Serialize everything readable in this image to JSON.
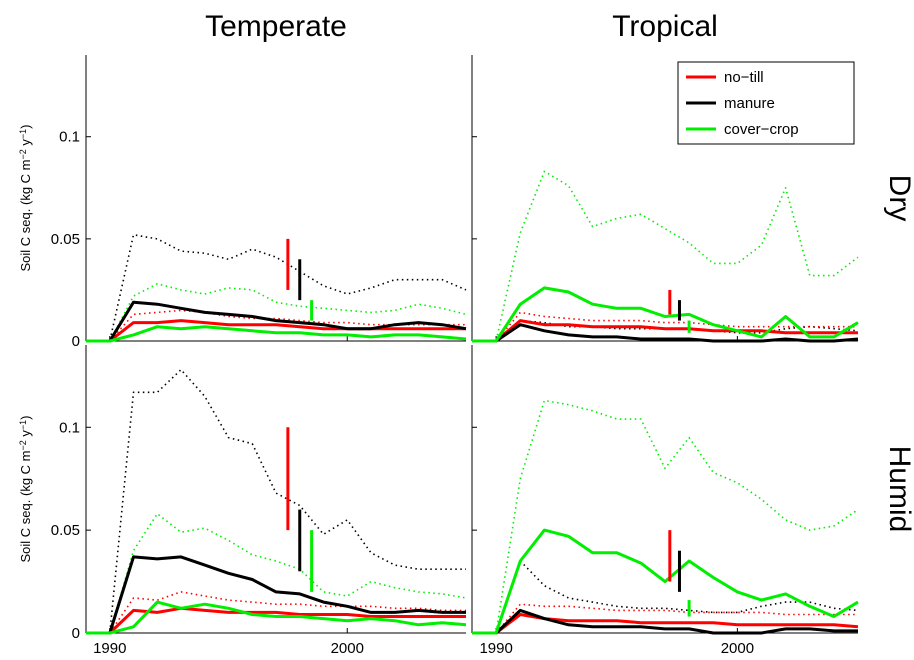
{
  "chart_data": [
    {
      "type": "line",
      "title": "Temperate",
      "ylabel": [
        "Soil C seq. (kg C m",
        "−2",
        " y",
        "−1",
        ")"
      ],
      "x": [
        1989,
        1990,
        1991,
        1992,
        1993,
        1994,
        1995,
        1996,
        1997,
        1998,
        1999,
        2000,
        2001,
        2002,
        2003,
        2004,
        2005
      ],
      "xlim": [
        1989,
        2005
      ],
      "xticks": [
        1990,
        2000
      ],
      "show_xticklabels": false,
      "ylim": [
        0,
        0.14
      ],
      "yticks": [
        0,
        0.05,
        0.1
      ],
      "show_yticklabels": true,
      "series": [
        {
          "color": "#000000",
          "style": "dotted",
          "values": [
            0,
            0,
            0.052,
            0.05,
            0.044,
            0.043,
            0.04,
            0.045,
            0.041,
            0.034,
            0.027,
            0.023,
            0.026,
            0.03,
            0.03,
            0.03,
            0.025
          ]
        },
        {
          "color": "#00ee00",
          "style": "dotted",
          "values": [
            0,
            0,
            0.022,
            0.028,
            0.025,
            0.023,
            0.026,
            0.025,
            0.019,
            0.017,
            0.016,
            0.015,
            0.014,
            0.015,
            0.018,
            0.016,
            0.013
          ]
        },
        {
          "color": "#ff0000",
          "style": "dotted",
          "values": [
            0,
            0,
            0.013,
            0.014,
            0.015,
            0.014,
            0.012,
            0.011,
            0.011,
            0.01,
            0.009,
            0.009,
            0.008,
            0.008,
            0.008,
            0.008,
            0.008
          ]
        },
        {
          "color": "#ff0000",
          "style": "solid",
          "values": [
            0,
            0,
            0.009,
            0.009,
            0.01,
            0.009,
            0.008,
            0.008,
            0.008,
            0.007,
            0.006,
            0.006,
            0.006,
            0.006,
            0.006,
            0.006,
            0.006
          ]
        },
        {
          "color": "#000000",
          "style": "solid",
          "values": [
            0,
            0,
            0.019,
            0.018,
            0.016,
            0.014,
            0.013,
            0.012,
            0.01,
            0.009,
            0.008,
            0.006,
            0.006,
            0.008,
            0.009,
            0.008,
            0.006
          ]
        },
        {
          "color": "#00ee00",
          "style": "solid",
          "values": [
            0,
            0,
            0.003,
            0.007,
            0.006,
            0.007,
            0.006,
            0.005,
            0.004,
            0.004,
            0.003,
            0.003,
            0.002,
            0.003,
            0.003,
            0.002,
            0.001
          ]
        }
      ],
      "bars": [
        {
          "color": "#ff0000",
          "x": 1997.5,
          "low": 0.025,
          "high": 0.05
        },
        {
          "color": "#000000",
          "x": 1998,
          "low": 0.02,
          "high": 0.04
        },
        {
          "color": "#00ee00",
          "x": 1998.5,
          "low": 0.01,
          "high": 0.02
        }
      ]
    },
    {
      "type": "line",
      "title": "Tropical",
      "row_label": "Dry",
      "x": [
        1989,
        1990,
        1991,
        1992,
        1993,
        1994,
        1995,
        1996,
        1997,
        1998,
        1999,
        2000,
        2001,
        2002,
        2003,
        2004,
        2005
      ],
      "xlim": [
        1989,
        2005
      ],
      "xticks": [
        1990,
        2000
      ],
      "show_xticklabels": false,
      "ylim": [
        0,
        0.14
      ],
      "yticks": [
        0,
        0.05,
        0.1
      ],
      "show_yticklabels": false,
      "legend": "upper right",
      "series": [
        {
          "color": "#00ee00",
          "style": "dotted",
          "values": [
            0,
            0,
            0.053,
            0.083,
            0.076,
            0.056,
            0.06,
            0.062,
            0.055,
            0.048,
            0.038,
            0.038,
            0.047,
            0.075,
            0.032,
            0.032,
            0.041
          ]
        },
        {
          "color": "#000000",
          "style": "dotted",
          "values": [
            0,
            0,
            0.01,
            0.009,
            0.007,
            0.007,
            0.006,
            0.006,
            0.006,
            0.006,
            0.005,
            0.004,
            0.004,
            0.006,
            0.007,
            0.006,
            0.005
          ]
        },
        {
          "color": "#ff0000",
          "style": "dotted",
          "values": [
            0,
            0,
            0.014,
            0.012,
            0.011,
            0.01,
            0.01,
            0.01,
            0.009,
            0.009,
            0.008,
            0.007,
            0.007,
            0.007,
            0.007,
            0.007,
            0.007
          ]
        },
        {
          "name": "no−till",
          "color": "#ff0000",
          "style": "solid",
          "values": [
            0,
            0,
            0.01,
            0.008,
            0.008,
            0.007,
            0.007,
            0.007,
            0.006,
            0.006,
            0.005,
            0.005,
            0.005,
            0.004,
            0.004,
            0.004,
            0.004
          ]
        },
        {
          "name": "manure",
          "color": "#000000",
          "style": "solid",
          "values": [
            0,
            0,
            0.008,
            0.005,
            0.003,
            0.002,
            0.002,
            0.001,
            0.001,
            0.001,
            0,
            0,
            0,
            0.001,
            0,
            0,
            0.001
          ]
        },
        {
          "name": "cover−crop",
          "color": "#00ee00",
          "style": "solid",
          "values": [
            0,
            0,
            0.018,
            0.026,
            0.024,
            0.018,
            0.016,
            0.016,
            0.012,
            0.013,
            0.008,
            0.005,
            0.002,
            0.012,
            0.002,
            0.002,
            0.009
          ]
        }
      ],
      "bars": [
        {
          "color": "#ff0000",
          "x": 1997.2,
          "low": 0.013,
          "high": 0.025
        },
        {
          "color": "#000000",
          "x": 1997.6,
          "low": 0.01,
          "high": 0.02
        },
        {
          "color": "#00ee00",
          "x": 1998,
          "low": 0.004,
          "high": 0.01
        }
      ]
    },
    {
      "type": "line",
      "ylabel": [
        "Soil C seq. (kg C m",
        "−2",
        " y",
        "−1",
        ")"
      ],
      "x": [
        1989,
        1990,
        1991,
        1992,
        1993,
        1994,
        1995,
        1996,
        1997,
        1998,
        1999,
        2000,
        2001,
        2002,
        2003,
        2004,
        2005
      ],
      "xlim": [
        1989,
        2005
      ],
      "xticks": [
        1990,
        2000
      ],
      "show_xticklabels": true,
      "ylim": [
        0,
        0.14
      ],
      "yticks": [
        0,
        0.05,
        0.1
      ],
      "show_yticklabels": true,
      "series": [
        {
          "color": "#000000",
          "style": "dotted",
          "values": [
            0,
            0,
            0.117,
            0.117,
            0.128,
            0.115,
            0.095,
            0.092,
            0.068,
            0.062,
            0.048,
            0.055,
            0.039,
            0.033,
            0.031,
            0.031,
            0.031
          ]
        },
        {
          "color": "#00ee00",
          "style": "dotted",
          "values": [
            0,
            0,
            0.04,
            0.058,
            0.049,
            0.051,
            0.045,
            0.038,
            0.035,
            0.031,
            0.02,
            0.018,
            0.025,
            0.022,
            0.02,
            0.019,
            0.017
          ]
        },
        {
          "color": "#ff0000",
          "style": "dotted",
          "values": [
            0,
            0,
            0.017,
            0.016,
            0.02,
            0.018,
            0.016,
            0.015,
            0.014,
            0.014,
            0.013,
            0.013,
            0.013,
            0.012,
            0.012,
            0.011,
            0.011
          ]
        },
        {
          "color": "#ff0000",
          "style": "solid",
          "values": [
            0,
            0,
            0.011,
            0.01,
            0.012,
            0.011,
            0.01,
            0.01,
            0.01,
            0.009,
            0.009,
            0.009,
            0.008,
            0.008,
            0.008,
            0.008,
            0.008
          ]
        },
        {
          "color": "#000000",
          "style": "solid",
          "values": [
            0,
            0,
            0.037,
            0.036,
            0.037,
            0.033,
            0.029,
            0.026,
            0.02,
            0.019,
            0.015,
            0.013,
            0.01,
            0.01,
            0.011,
            0.01,
            0.01
          ]
        },
        {
          "color": "#00ee00",
          "style": "solid",
          "values": [
            0,
            0,
            0.003,
            0.015,
            0.012,
            0.014,
            0.012,
            0.009,
            0.008,
            0.008,
            0.007,
            0.006,
            0.007,
            0.006,
            0.004,
            0.005,
            0.004
          ]
        }
      ],
      "bars": [
        {
          "color": "#ff0000",
          "x": 1997.5,
          "low": 0.05,
          "high": 0.1
        },
        {
          "color": "#000000",
          "x": 1998,
          "low": 0.03,
          "high": 0.06
        },
        {
          "color": "#00ee00",
          "x": 1998.5,
          "low": 0.02,
          "high": 0.05
        }
      ]
    },
    {
      "type": "line",
      "row_label": "Humid",
      "x": [
        1989,
        1990,
        1991,
        1992,
        1993,
        1994,
        1995,
        1996,
        1997,
        1998,
        1999,
        2000,
        2001,
        2002,
        2003,
        2004,
        2005
      ],
      "xlim": [
        1989,
        2005
      ],
      "xticks": [
        1990,
        2000
      ],
      "show_xticklabels": true,
      "ylim": [
        0,
        0.14
      ],
      "yticks": [
        0,
        0.05,
        0.1
      ],
      "show_yticklabels": false,
      "series": [
        {
          "color": "#00ee00",
          "style": "dotted",
          "values": [
            0,
            0,
            0.075,
            0.113,
            0.111,
            0.108,
            0.104,
            0.104,
            0.08,
            0.095,
            0.078,
            0.073,
            0.065,
            0.055,
            0.05,
            0.052,
            0.06
          ]
        },
        {
          "color": "#000000",
          "style": "dotted",
          "values": [
            0,
            0,
            0.035,
            0.023,
            0.017,
            0.015,
            0.013,
            0.012,
            0.012,
            0.011,
            0.01,
            0.01,
            0.013,
            0.015,
            0.015,
            0.012,
            0.011
          ]
        },
        {
          "color": "#ff0000",
          "style": "dotted",
          "values": [
            0,
            0,
            0.014,
            0.013,
            0.013,
            0.012,
            0.011,
            0.011,
            0.011,
            0.01,
            0.01,
            0.01,
            0.01,
            0.009,
            0.009,
            0.009,
            0.009
          ]
        },
        {
          "color": "#ff0000",
          "style": "solid",
          "values": [
            0,
            0,
            0.009,
            0.007,
            0.006,
            0.006,
            0.006,
            0.005,
            0.005,
            0.005,
            0.005,
            0.004,
            0.004,
            0.004,
            0.004,
            0.004,
            0.003
          ]
        },
        {
          "color": "#000000",
          "style": "solid",
          "values": [
            0,
            0,
            0.011,
            0.007,
            0.004,
            0.003,
            0.003,
            0.003,
            0.002,
            0.002,
            0,
            0,
            0,
            0.002,
            0.002,
            0.001,
            0.001
          ]
        },
        {
          "color": "#00ee00",
          "style": "solid",
          "values": [
            0,
            0,
            0.035,
            0.05,
            0.047,
            0.039,
            0.039,
            0.034,
            0.025,
            0.035,
            0.027,
            0.02,
            0.016,
            0.019,
            0.013,
            0.008,
            0.015
          ]
        }
      ],
      "bars": [
        {
          "color": "#ff0000",
          "x": 1997.2,
          "low": 0.025,
          "high": 0.05
        },
        {
          "color": "#000000",
          "x": 1997.6,
          "low": 0.02,
          "high": 0.04
        },
        {
          "color": "#00ee00",
          "x": 1998,
          "low": 0.008,
          "high": 0.016
        }
      ]
    }
  ]
}
